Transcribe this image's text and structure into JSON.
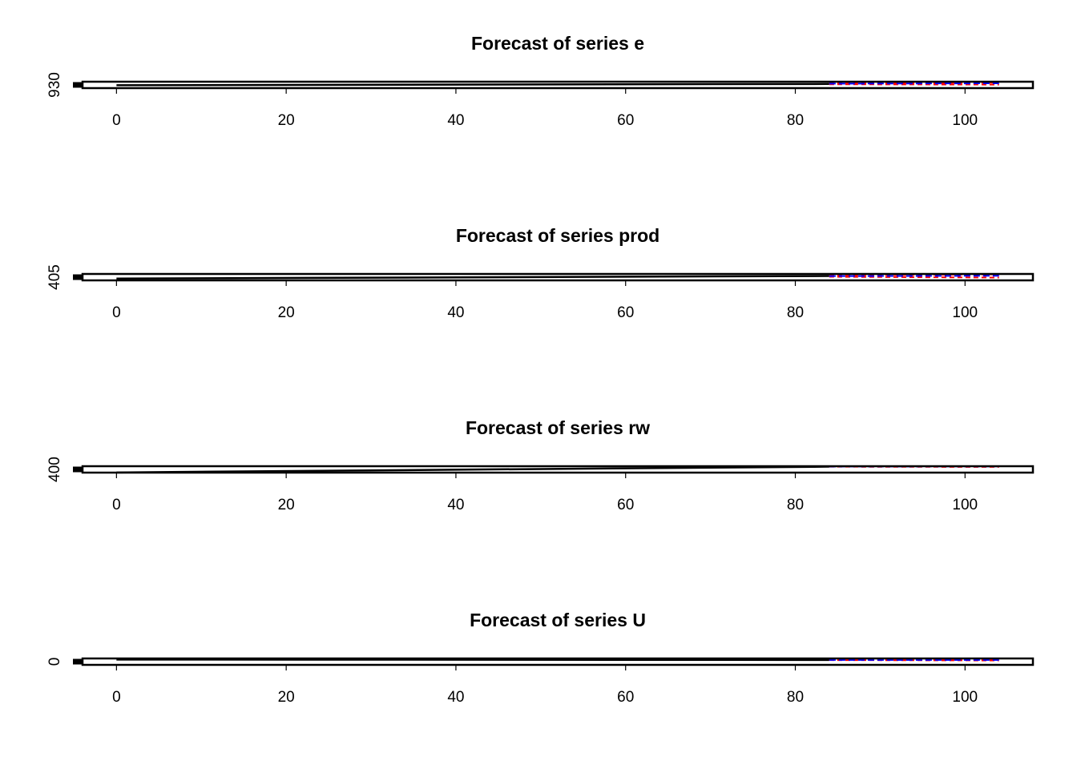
{
  "chart_data": [
    {
      "type": "line",
      "title": "Forecast of series e",
      "xlabel": "",
      "ylabel": "",
      "x_ticks": [
        0,
        20,
        40,
        60,
        80,
        100
      ],
      "y_ticks": [
        930
      ],
      "xlim": [
        -4,
        108
      ],
      "ylim": [
        929.5,
        931.5
      ],
      "observed": {
        "x": [
          0,
          84
        ],
        "y": [
          930.4,
          930.8
        ]
      },
      "forecast": {
        "x": [
          84,
          104
        ],
        "fcst": [
          930.9,
          931.0
        ],
        "lower": [
          930.7,
          930.6
        ],
        "upper": [
          931.0,
          931.2
        ]
      },
      "colors": {
        "observed": "#000000",
        "forecast": "#0000ff",
        "interval": "#ff0000"
      },
      "grid": false,
      "legend": "none"
    },
    {
      "type": "line",
      "title": "Forecast of series prod",
      "xlabel": "",
      "ylabel": "",
      "x_ticks": [
        0,
        20,
        40,
        60,
        80,
        100
      ],
      "y_ticks": [
        405
      ],
      "xlim": [
        -4,
        108
      ],
      "ylim": [
        403,
        411
      ],
      "observed": {
        "x": [
          0,
          84
        ],
        "y": [
          405.2,
          408.5
        ]
      },
      "forecast": {
        "x": [
          84,
          104
        ],
        "fcst": [
          408.3,
          408.8
        ],
        "lower": [
          407.5,
          406.5
        ],
        "upper": [
          409.1,
          410.5
        ]
      },
      "colors": {
        "observed": "#000000",
        "forecast": "#0000ff",
        "interval": "#ff0000"
      },
      "grid": false,
      "legend": "none"
    },
    {
      "type": "line",
      "title": "Forecast of series rw",
      "xlabel": "",
      "ylabel": "",
      "x_ticks": [
        0,
        20,
        40,
        60,
        80,
        100
      ],
      "y_ticks": [
        400
      ],
      "xlim": [
        -4,
        108
      ],
      "ylim": [
        398,
        486
      ],
      "observed": {
        "x": [
          0,
          84
        ],
        "y": [
          400,
          480
        ]
      },
      "forecast": {
        "x": [
          84,
          104
        ],
        "fcst": [
          481,
          484
        ],
        "lower": [
          479,
          476
        ],
        "upper": [
          483,
          486
        ]
      },
      "colors": {
        "observed": "#000000",
        "forecast": "#0000ff",
        "interval": "#ff0000"
      },
      "grid": false,
      "legend": "none"
    },
    {
      "type": "line",
      "title": "Forecast of series U",
      "xlabel": "",
      "ylabel": "",
      "x_ticks": [
        0,
        20,
        40,
        60,
        80,
        100
      ],
      "y_ticks": [
        0
      ],
      "xlim": [
        -4,
        108
      ],
      "ylim": [
        -20,
        15
      ],
      "observed": {
        "x": [
          0,
          84
        ],
        "y": [
          9,
          7
        ]
      },
      "forecast": {
        "x": [
          84,
          104
        ],
        "fcst": [
          7,
          7
        ],
        "lower": [
          6,
          4
        ],
        "upper": [
          8,
          10
        ]
      },
      "colors": {
        "observed": "#000000",
        "forecast": "#0000ff",
        "interval": "#ff0000"
      },
      "grid": false,
      "legend": "none"
    }
  ]
}
